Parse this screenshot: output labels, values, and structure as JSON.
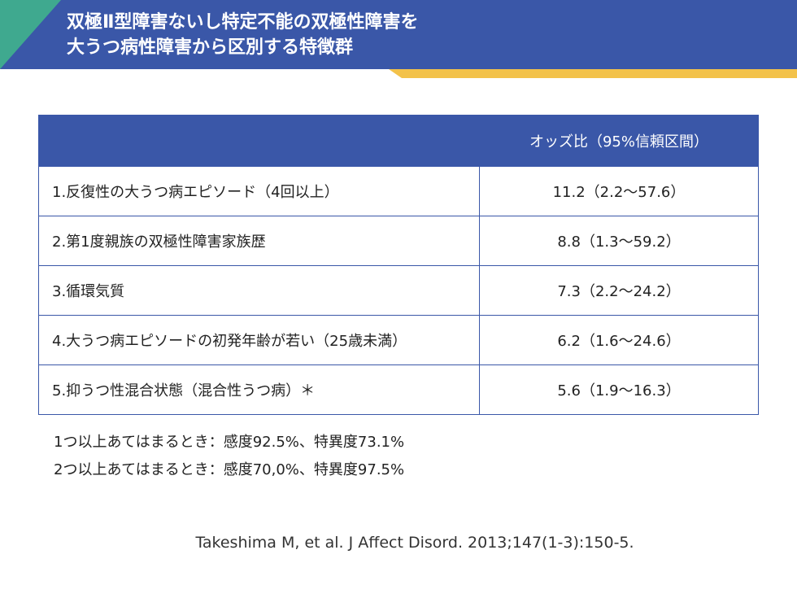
{
  "header": {
    "title_line1": "双極Ⅱ型障害ないし特定不能の双極性障害を",
    "title_line2": "大うつ病性障害から区別する特徴群"
  },
  "table": {
    "headers": [
      "",
      "オッズ比（95%信頼区間）"
    ],
    "rows": [
      {
        "item": "1.反復性の大うつ病エピソード（4回以上）",
        "or": "11.2（2.2〜57.6）"
      },
      {
        "item": "2.第1度親族の双極性障害家族歴",
        "or": "8.8（1.3〜59.2）"
      },
      {
        "item": "3.循環気質",
        "or": "7.3（2.2〜24.2）"
      },
      {
        "item": "4.大うつ病エピソードの初発年齢が若い（25歳未満）",
        "or": "6.2（1.6〜24.6）"
      },
      {
        "item": "5.抑うつ性混合状態（混合性うつ病）＊",
        "or": "5.6（1.9〜16.3）"
      }
    ]
  },
  "notes": [
    "1つ以上あてはまるとき：感度92.5%、特異度73.1%",
    "2つ以上あてはまるとき：感度70,0%、特異度97.5%"
  ],
  "citation": "Takeshima M, et al. J Affect Disord. 2013;147(1-3):150-5.",
  "colors": {
    "primary_blue": "#3a57a8",
    "accent_green": "#3fa98f",
    "accent_yellow": "#f3c24a"
  }
}
